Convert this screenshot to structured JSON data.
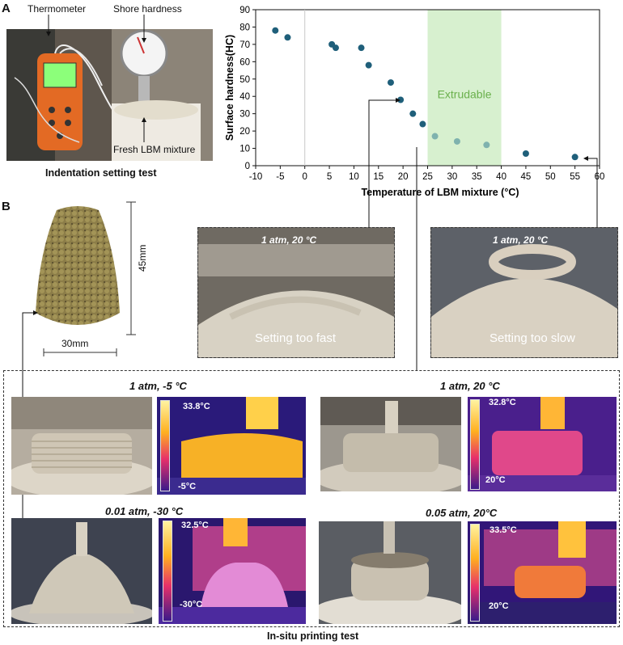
{
  "panel_a": {
    "letter": "A",
    "labels": {
      "thermometer": "Thermometer",
      "shore": "Shore hardness",
      "fresh": "Fresh LBM mixture"
    },
    "caption": "Indentation setting test"
  },
  "chart_data": {
    "type": "scatter",
    "title": "",
    "xlabel": "Temperature of LBM mixture (°C)",
    "ylabel": "Surface hardness(HC)",
    "xlim": [
      -10,
      60
    ],
    "ylim": [
      0,
      90
    ],
    "xticks": [
      "-10",
      "-5",
      "0",
      "5",
      "10",
      "15",
      "20",
      "25",
      "30",
      "35",
      "40",
      "45",
      "50",
      "55",
      "60"
    ],
    "yticks": [
      "0",
      "10",
      "20",
      "30",
      "40",
      "50",
      "60",
      "70",
      "80",
      "90"
    ],
    "region": {
      "label": "Extrudable",
      "x0": 25,
      "x1": 40,
      "color": "#d7f0cf",
      "text_color": "#6ab04c"
    },
    "points": [
      {
        "x": -6,
        "y": 78,
        "color": "#1f5f7a"
      },
      {
        "x": -3.5,
        "y": 74,
        "color": "#1f5f7a"
      },
      {
        "x": 5.5,
        "y": 70,
        "color": "#1f5f7a"
      },
      {
        "x": 6.3,
        "y": 68,
        "color": "#1f5f7a"
      },
      {
        "x": 11.5,
        "y": 68,
        "color": "#1f5f7a"
      },
      {
        "x": 13,
        "y": 58,
        "color": "#1f5f7a"
      },
      {
        "x": 17.5,
        "y": 48,
        "color": "#1f5f7a"
      },
      {
        "x": 19.5,
        "y": 38,
        "color": "#1f5f7a"
      },
      {
        "x": 22,
        "y": 30,
        "color": "#1f5f7a"
      },
      {
        "x": 24,
        "y": 24,
        "color": "#1f5f7a"
      },
      {
        "x": 26.5,
        "y": 17,
        "color": "#7fb2ae"
      },
      {
        "x": 31,
        "y": 14,
        "color": "#7fb2ae"
      },
      {
        "x": 37,
        "y": 12,
        "color": "#7fb2ae"
      },
      {
        "x": 45,
        "y": 7,
        "color": "#1f5f7a"
      },
      {
        "x": 55,
        "y": 5,
        "color": "#1f5f7a"
      }
    ],
    "grid": false
  },
  "panel_b": {
    "letter": "B",
    "scale_h": "45mm",
    "scale_w": "30mm",
    "fast": {
      "cond": "1 atm, 20 °C",
      "label": "Setting too fast"
    },
    "slow": {
      "cond": "1 atm, 20 °C",
      "label": "Setting too slow"
    },
    "tests": [
      {
        "cond": "1 atm, -5 °C",
        "tmax": "33.8°C",
        "tmin": "-5°C"
      },
      {
        "cond": "1 atm, 20 °C",
        "tmax": "32.8°C",
        "tmin": "20°C"
      },
      {
        "cond": "0.01 atm, -30 °C",
        "tmax": "32.5°C",
        "tmin": "-30°C"
      },
      {
        "cond": "0.05 atm, 20°C",
        "tmax": "33.5°C",
        "tmin": "20°C"
      }
    ],
    "caption": "In-situ printing test"
  }
}
